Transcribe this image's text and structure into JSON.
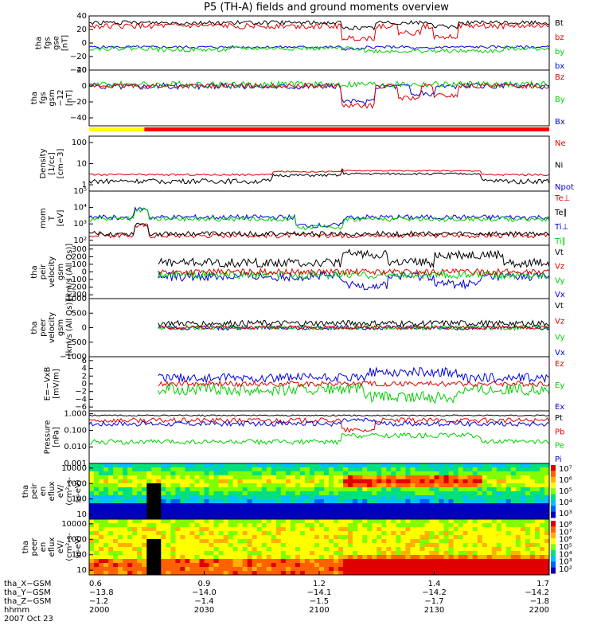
{
  "chart_data": {
    "type": "line",
    "title": "P5 (TH-A) fields and ground moments overview",
    "time_range": [
      "2000",
      "2200"
    ],
    "date_label": "2007 Oct 23",
    "panels": [
      {
        "id": "fgs-gse",
        "ylabel": [
          "tha",
          "fgs",
          "gse",
          "[nT]"
        ],
        "ylim": [
          -40,
          40
        ],
        "scale": "linear",
        "ticks": [
          {
            "v": 40,
            "t": "40"
          },
          {
            "v": 20,
            "t": "20"
          },
          {
            "v": 0,
            "t": "0"
          },
          {
            "v": -20,
            "t": "−20"
          },
          {
            "v": -40,
            "t": "−40"
          }
        ],
        "legend": [
          {
            "label": "Bt",
            "color": "#000000"
          },
          {
            "label": "bz",
            "color": "#e00000"
          },
          {
            "label": "by",
            "color": "#00d000"
          },
          {
            "label": "bx",
            "color": "#0000e0"
          }
        ],
        "series": [
          {
            "name": "bx",
            "color": "#0000e0",
            "base": -6,
            "noise": 2,
            "events": [
              [
                0.55,
                0.6,
                -3
              ],
              [
                0.7,
                0.75,
                -2
              ]
            ]
          },
          {
            "name": "by",
            "color": "#00d000",
            "base": -8,
            "noise": 3,
            "events": [
              [
                0.15,
                0.3,
                -2
              ],
              [
                0.6,
                0.9,
                -4
              ]
            ]
          },
          {
            "name": "bz",
            "color": "#e00000",
            "base": 25,
            "noise": 4,
            "events": [
              [
                0.55,
                0.62,
                -18
              ],
              [
                0.67,
                0.72,
                -10
              ],
              [
                0.75,
                0.8,
                -15
              ]
            ]
          },
          {
            "name": "Bt",
            "color": "#000000",
            "base": 30,
            "noise": 3,
            "events": [
              [
                0.55,
                0.62,
                -8
              ],
              [
                0.75,
                0.8,
                -6
              ]
            ]
          }
        ]
      },
      {
        "id": "fgs-gsm",
        "ylabel": [
          "tha",
          "fgs",
          "gsm",
          "−12",
          "[nT]"
        ],
        "ylim": [
          -50,
          20
        ],
        "scale": "linear",
        "ticks": [
          {
            "v": 20,
            "t": "20"
          },
          {
            "v": 0,
            "t": "0"
          },
          {
            "v": -20,
            "t": "−20"
          },
          {
            "v": -40,
            "t": "−40"
          }
        ],
        "legend": [
          {
            "label": "Bz",
            "color": "#e00000"
          },
          {
            "label": "By",
            "color": "#00d000"
          },
          {
            "label": "Bx",
            "color": "#0000e0"
          }
        ],
        "series": [
          {
            "name": "Bx",
            "color": "#0000e0",
            "base": 0,
            "noise": 4,
            "events": [
              [
                0.55,
                0.62,
                -20
              ],
              [
                0.7,
                0.75,
                -10
              ]
            ]
          },
          {
            "name": "By",
            "color": "#00d000",
            "base": 2,
            "noise": 4,
            "events": []
          },
          {
            "name": "Bz",
            "color": "#e00000",
            "base": 0,
            "noise": 3,
            "events": [
              [
                0.55,
                0.62,
                -25
              ],
              [
                0.67,
                0.72,
                -15
              ],
              [
                0.75,
                0.8,
                -12
              ]
            ]
          }
        ]
      },
      {
        "id": "density",
        "ylabel": [
          "Density",
          "[1/cc]",
          "[cm−3]"
        ],
        "ylim": [
          0.5,
          200
        ],
        "scale": "log",
        "ticks": [
          {
            "v": 100,
            "t": "100"
          },
          {
            "v": 10,
            "t": "10"
          },
          {
            "v": 1,
            "t": "1"
          }
        ],
        "legend": [
          {
            "label": "Ne",
            "color": "#e00000"
          },
          {
            "label": "Ni",
            "color": "#000000"
          },
          {
            "label": "Npot",
            "color": "#0000e0"
          }
        ],
        "series": [
          {
            "name": "Ne",
            "color": "#e00000",
            "base": 3,
            "noise": 0.3,
            "events": [
              [
                0.4,
                0.55,
                1.2
              ],
              [
                0.55,
                0.85,
                1.6
              ]
            ]
          },
          {
            "name": "Ni",
            "color": "#000000",
            "base": 1.5,
            "noise": 0.4,
            "events": [
              [
                0.4,
                0.55,
                1.3
              ],
              [
                0.55,
                0.85,
                1.8
              ]
            ]
          }
        ]
      },
      {
        "id": "temperature",
        "ylabel": [
          "mom",
          "T",
          "[eV]"
        ],
        "ylim": [
          50,
          100000
        ],
        "scale": "log",
        "ticks": [
          {
            "v": 100000,
            "t": "10⁵"
          },
          {
            "v": 10000,
            "t": "10⁴"
          },
          {
            "v": 1000,
            "t": "10³"
          },
          {
            "v": 100,
            "t": "10²"
          }
        ],
        "legend": [
          {
            "label": "Te⊥",
            "color": "#e00000"
          },
          {
            "label": "Te∥",
            "color": "#000000"
          },
          {
            "label": "Ti⊥",
            "color": "#0000e0"
          },
          {
            "label": "Ti∥",
            "color": "#00d000"
          }
        ],
        "series": [
          {
            "name": "Te⊥",
            "color": "#e00000",
            "base": 2.3,
            "noise": 0.15,
            "events": [
              [
                0.1,
                0.13,
                0.6
              ]
            ]
          },
          {
            "name": "Te∥",
            "color": "#000000",
            "base": 2.4,
            "noise": 0.15,
            "events": [
              [
                0.1,
                0.13,
                0.6
              ]
            ]
          },
          {
            "name": "Ti⊥",
            "color": "#0000e0",
            "base": 3.4,
            "noise": 0.15,
            "events": [
              [
                0.1,
                0.13,
                0.5
              ],
              [
                0.45,
                0.55,
                -0.5
              ]
            ]
          },
          {
            "name": "Ti∥",
            "color": "#00d000",
            "base": 3.3,
            "noise": 0.15,
            "events": [
              [
                0.1,
                0.13,
                0.5
              ],
              [
                0.45,
                0.55,
                -0.5
              ]
            ]
          }
        ]
      },
      {
        "id": "peir-velocity",
        "ylabel": [
          "tha",
          "peir",
          "velocity",
          "gsm",
          "[km/s (All Qs)]"
        ],
        "ylim": [
          -350,
          350
        ],
        "scale": "linear",
        "ticks": [
          {
            "v": 300,
            "t": "300"
          },
          {
            "v": 200,
            "t": "200"
          },
          {
            "v": 100,
            "t": "100"
          },
          {
            "v": 0,
            "t": "0"
          },
          {
            "v": -100,
            "t": "−100"
          },
          {
            "v": -200,
            "t": "−200"
          },
          {
            "v": -300,
            "t": "−300"
          }
        ],
        "legend": [
          {
            "label": "Vt",
            "color": "#000000"
          },
          {
            "label": "Vz",
            "color": "#e00000"
          },
          {
            "label": "Vy",
            "color": "#00d000"
          },
          {
            "label": "Vx",
            "color": "#0000e0"
          }
        ],
        "series": [
          {
            "name": "Vx",
            "color": "#0000e0",
            "base": -60,
            "noise": 60,
            "events": [
              [
                0.55,
                0.65,
                -120
              ],
              [
                0.75,
                0.85,
                -100
              ]
            ]
          },
          {
            "name": "Vy",
            "color": "#00d000",
            "base": -40,
            "noise": 50,
            "events": []
          },
          {
            "name": "Vz",
            "color": "#e00000",
            "base": 0,
            "noise": 40,
            "events": []
          },
          {
            "name": "Vt",
            "color": "#000000",
            "base": 120,
            "noise": 60,
            "events": [
              [
                0.55,
                0.65,
                120
              ],
              [
                0.75,
                0.9,
                100
              ]
            ]
          }
        ]
      },
      {
        "id": "peer-velocity",
        "ylabel": [
          "tha",
          "peer",
          "velocity",
          "gsm",
          "[km/s (All Qs)]"
        ],
        "ylim": [
          -1000,
          1000
        ],
        "scale": "linear",
        "ticks": [
          {
            "v": 1000,
            "t": "1000"
          },
          {
            "v": 500,
            "t": "500"
          },
          {
            "v": 0,
            "t": "0"
          },
          {
            "v": -500,
            "t": "−500"
          },
          {
            "v": -1000,
            "t": "−1000"
          }
        ],
        "legend": [
          {
            "label": "Vt",
            "color": "#000000"
          },
          {
            "label": "Vz",
            "color": "#e00000"
          },
          {
            "label": "Vy",
            "color": "#00d000"
          },
          {
            "label": "Vx",
            "color": "#0000e0"
          }
        ],
        "series": [
          {
            "name": "Vx",
            "color": "#0000e0",
            "base": 0,
            "noise": 80,
            "events": []
          },
          {
            "name": "Vy",
            "color": "#00d000",
            "base": 0,
            "noise": 80,
            "events": []
          },
          {
            "name": "Vz",
            "color": "#e00000",
            "base": 0,
            "noise": 60,
            "events": []
          },
          {
            "name": "Vt",
            "color": "#000000",
            "base": 150,
            "noise": 100,
            "events": []
          }
        ]
      },
      {
        "id": "efield",
        "ylabel": [
          "E=−VxB",
          "[mV/m]"
        ],
        "ylim": [
          -7,
          7
        ],
        "scale": "linear",
        "ticks": [
          {
            "v": 6,
            "t": "6"
          },
          {
            "v": 4,
            "t": "4"
          },
          {
            "v": 2,
            "t": "2"
          },
          {
            "v": 0,
            "t": "0"
          },
          {
            "v": -2,
            "t": "−2"
          },
          {
            "v": -4,
            "t": "−4"
          },
          {
            "v": -6,
            "t": "−6"
          }
        ],
        "legend": [
          {
            "label": "Ez",
            "color": "#e00000"
          },
          {
            "label": "Ey",
            "color": "#00d000"
          },
          {
            "label": "Ex",
            "color": "#0000e0"
          }
        ],
        "series": [
          {
            "name": "Ex",
            "color": "#0000e0",
            "base": 1.5,
            "noise": 1.2,
            "events": [
              [
                0.6,
                0.8,
                1.5
              ]
            ]
          },
          {
            "name": "Ey",
            "color": "#00d000",
            "base": -1.5,
            "noise": 1.5,
            "events": [
              [
                0.6,
                0.8,
                -2
              ]
            ]
          },
          {
            "name": "Ez",
            "color": "#e00000",
            "base": 0,
            "noise": 0.7,
            "events": []
          }
        ]
      },
      {
        "id": "pressure",
        "ylabel": [
          "Pressure",
          "[nPa]"
        ],
        "ylim": [
          0.001,
          1.5
        ],
        "scale": "log",
        "ticks": [
          {
            "v": 1,
            "t": "1.000"
          },
          {
            "v": 0.1,
            "t": "0.100"
          },
          {
            "v": 0.01,
            "t": "0.010"
          },
          {
            "v": 0.001,
            "t": "0.001"
          }
        ],
        "legend": [
          {
            "label": "Pt",
            "color": "#000000"
          },
          {
            "label": "Pb",
            "color": "#e00000"
          },
          {
            "label": "Pe",
            "color": "#00d000"
          },
          {
            "label": "Pi",
            "color": "#0000e0"
          }
        ],
        "series": [
          {
            "name": "Pt",
            "color": "#000000",
            "base": -0.1,
            "noise": 0.04,
            "events": []
          },
          {
            "name": "Pb",
            "color": "#e00000",
            "base": -0.4,
            "noise": 0.15,
            "events": [
              [
                0.55,
                0.62,
                -0.6
              ]
            ]
          },
          {
            "name": "Pi",
            "color": "#0000e0",
            "base": -0.6,
            "noise": 0.15,
            "events": [
              [
                0.55,
                0.62,
                0.2
              ]
            ]
          },
          {
            "name": "Pe",
            "color": "#00d000",
            "base": -1.7,
            "noise": 0.15,
            "events": [
              [
                0.55,
                0.85,
                0.4
              ]
            ]
          }
        ]
      },
      {
        "id": "peir-eflux",
        "type": "heatmap",
        "ylabel": [
          "tha",
          "peir",
          "en",
          "eflux",
          "eV/",
          "(cm²-s-",
          "sr-eV)"
        ],
        "ylim": [
          5,
          20000
        ],
        "scale": "log",
        "ticks": [
          {
            "v": 10000,
            "t": "10000"
          },
          {
            "v": 1000,
            "t": "1000"
          },
          {
            "v": 100,
            "t": "100"
          },
          {
            "v": 10,
            "t": "10"
          }
        ],
        "colorbar": [
          "10⁷",
          "10⁶",
          "10⁵",
          "10⁴",
          "10³"
        ]
      },
      {
        "id": "peer-eflux",
        "type": "heatmap",
        "ylabel": [
          "tha",
          "peer",
          "en",
          "eflux",
          "eV/",
          "(cm²-s-",
          "sr-eV)"
        ],
        "ylim": [
          5,
          20000
        ],
        "scale": "log",
        "ticks": [
          {
            "v": 10000,
            "t": "10000"
          },
          {
            "v": 1000,
            "t": "1000"
          },
          {
            "v": 100,
            "t": "100"
          },
          {
            "v": 10,
            "t": "10"
          }
        ],
        "colorbar": [
          "10⁸",
          "10⁷",
          "10⁶",
          "10⁵",
          "10⁴",
          "10³",
          "10²"
        ]
      }
    ],
    "mode_bar": [
      {
        "from": 0.0,
        "to": 0.12,
        "color": "#ffff00"
      },
      {
        "from": 0.12,
        "to": 1.0,
        "color": "#ff0000"
      }
    ],
    "x_axis": {
      "row_labels": [
        "tha_X−GSM",
        "tha_Y−GSM",
        "tha_Z−GSM",
        "hhmm",
        "2007 Oct 23"
      ],
      "ticks": [
        {
          "frac": 0.0,
          "x": "0.6",
          "y": "−13.8",
          "z": "−1.2",
          "hhmm": "2000"
        },
        {
          "frac": 0.25,
          "x": "0.9",
          "y": "−14.0",
          "z": "−1.4",
          "hhmm": "2030"
        },
        {
          "frac": 0.5,
          "x": "1.2",
          "y": "−14.1",
          "z": "−1.5",
          "hhmm": "2100"
        },
        {
          "frac": 0.75,
          "x": "1.4",
          "y": "−14.2",
          "z": "−1.7",
          "hhmm": "2130"
        },
        {
          "frac": 1.0,
          "x": "1.7",
          "y": "−14.2",
          "z": "−1.8",
          "hhmm": "2200"
        }
      ]
    }
  }
}
